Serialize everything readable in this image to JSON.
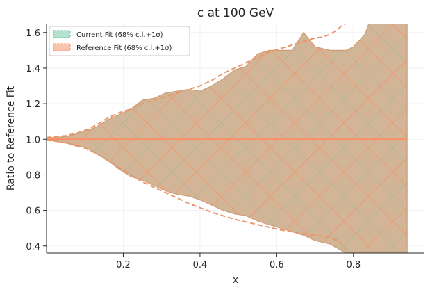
{
  "chart_data": {
    "type": "area",
    "title": "c at 100 GeV",
    "xlabel": "x",
    "ylabel": "Ratio to Reference Fit",
    "xlim": [
      0.0,
      0.985
    ],
    "ylim": [
      0.36,
      1.65
    ],
    "x_ticks": [
      0.2,
      0.4,
      0.6,
      0.8
    ],
    "x_tick_labels": [
      "0.2",
      "0.4",
      "0.6",
      "0.8"
    ],
    "y_ticks": [
      0.4,
      0.6,
      0.8,
      1.0,
      1.2,
      1.4,
      1.6
    ],
    "y_tick_labels": [
      "0.4",
      "0.6",
      "0.8",
      "1.0",
      "1.2",
      "1.4",
      "1.6"
    ],
    "grid": true,
    "legend_position": "top-left",
    "colors": {
      "current": "#66c2a5",
      "current_fill": "#b3e2cd",
      "reference": "#fc8d62",
      "reference_fill": "#f8c6ae",
      "overlap_fill": "#d2b496",
      "band_edge": "#d19c74",
      "reference_dashed": "#e8976b",
      "unity_line": "#fc8d62"
    },
    "series": [
      {
        "name": "Current Fit (68% c.l.+1σ)",
        "x": [
          0.0,
          0.02,
          0.05,
          0.08,
          0.1,
          0.13,
          0.16,
          0.19,
          0.22,
          0.25,
          0.28,
          0.31,
          0.34,
          0.37,
          0.4,
          0.43,
          0.46,
          0.49,
          0.52,
          0.55,
          0.58,
          0.61,
          0.64,
          0.67,
          0.7,
          0.74,
          0.78,
          0.8,
          0.83,
          0.84,
          0.87,
          0.9,
          0.94
        ],
        "upper": [
          1.01,
          1.01,
          1.015,
          1.03,
          1.045,
          1.07,
          1.11,
          1.14,
          1.17,
          1.22,
          1.23,
          1.26,
          1.27,
          1.28,
          1.27,
          1.3,
          1.34,
          1.39,
          1.41,
          1.48,
          1.5,
          1.5,
          1.5,
          1.6,
          1.52,
          1.5,
          1.5,
          1.52,
          1.59,
          1.65,
          1.65,
          1.65,
          1.65
        ],
        "lower": [
          0.995,
          0.99,
          0.98,
          0.96,
          0.955,
          0.92,
          0.88,
          0.83,
          0.79,
          0.77,
          0.74,
          0.71,
          0.69,
          0.68,
          0.66,
          0.63,
          0.6,
          0.58,
          0.57,
          0.54,
          0.52,
          0.5,
          0.48,
          0.46,
          0.43,
          0.41,
          0.36,
          0.36,
          0.36,
          0.36,
          0.36,
          0.36,
          0.36
        ]
      },
      {
        "name": "Reference Fit (68% c.l.+1σ)",
        "x": [
          0.0,
          0.02,
          0.05,
          0.08,
          0.1,
          0.13,
          0.16,
          0.19,
          0.22,
          0.25,
          0.28,
          0.31,
          0.34,
          0.37,
          0.4,
          0.43,
          0.46,
          0.49,
          0.52,
          0.55,
          0.58,
          0.61,
          0.64,
          0.67,
          0.7,
          0.72,
          0.74,
          0.76,
          0.77,
          0.78
        ],
        "upper": [
          1.01,
          1.015,
          1.02,
          1.035,
          1.05,
          1.08,
          1.12,
          1.15,
          1.17,
          1.2,
          1.22,
          1.24,
          1.26,
          1.28,
          1.3,
          1.33,
          1.37,
          1.4,
          1.43,
          1.46,
          1.49,
          1.51,
          1.53,
          1.55,
          1.57,
          1.575,
          1.59,
          1.62,
          1.64,
          1.65
        ],
        "lower": [
          0.995,
          0.99,
          0.98,
          0.965,
          0.95,
          0.92,
          0.88,
          0.84,
          0.8,
          0.76,
          0.73,
          0.7,
          0.67,
          0.64,
          0.615,
          0.59,
          0.57,
          0.55,
          0.535,
          0.52,
          0.505,
          0.49,
          0.48,
          0.47,
          0.46,
          0.455,
          0.445,
          0.43,
          0.41,
          0.38
        ]
      }
    ],
    "unity_line": 1.0
  }
}
